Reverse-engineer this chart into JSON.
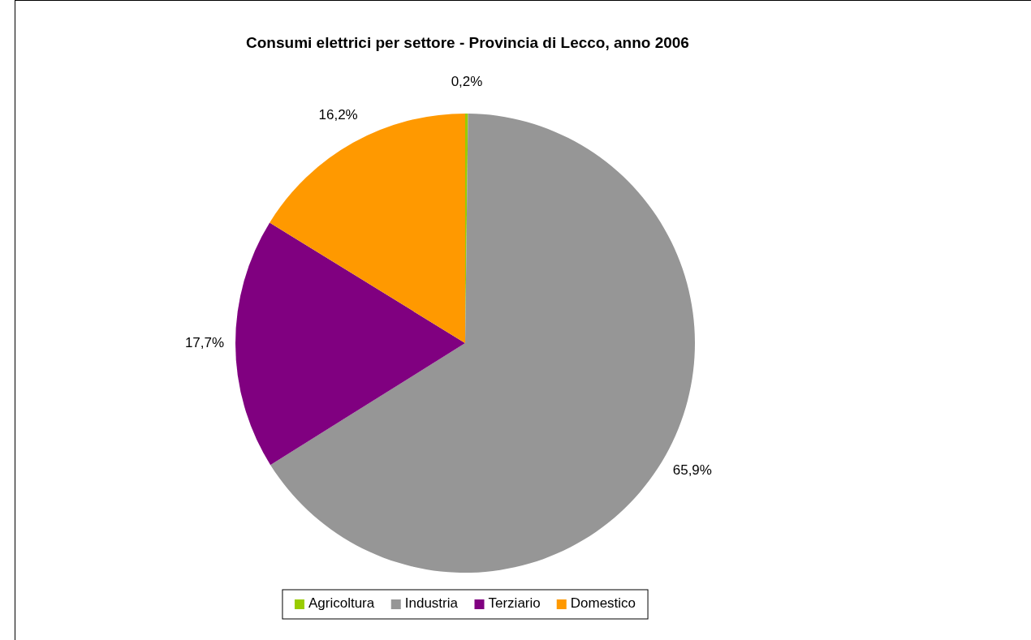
{
  "chart_data": {
    "type": "pie",
    "title": "Consumi elettrici per settore - Provincia di Lecco, anno 2006",
    "categories": [
      "Agricoltura",
      "Industria",
      "Terziario",
      "Domestico"
    ],
    "values": [
      0.2,
      65.9,
      17.7,
      16.2
    ],
    "colors": [
      "#99cc00",
      "#969696",
      "#800080",
      "#ff9900"
    ],
    "value_labels": [
      "0,2%",
      "65,9%",
      "17,7%",
      "16,2%"
    ],
    "legend": "bottom"
  }
}
